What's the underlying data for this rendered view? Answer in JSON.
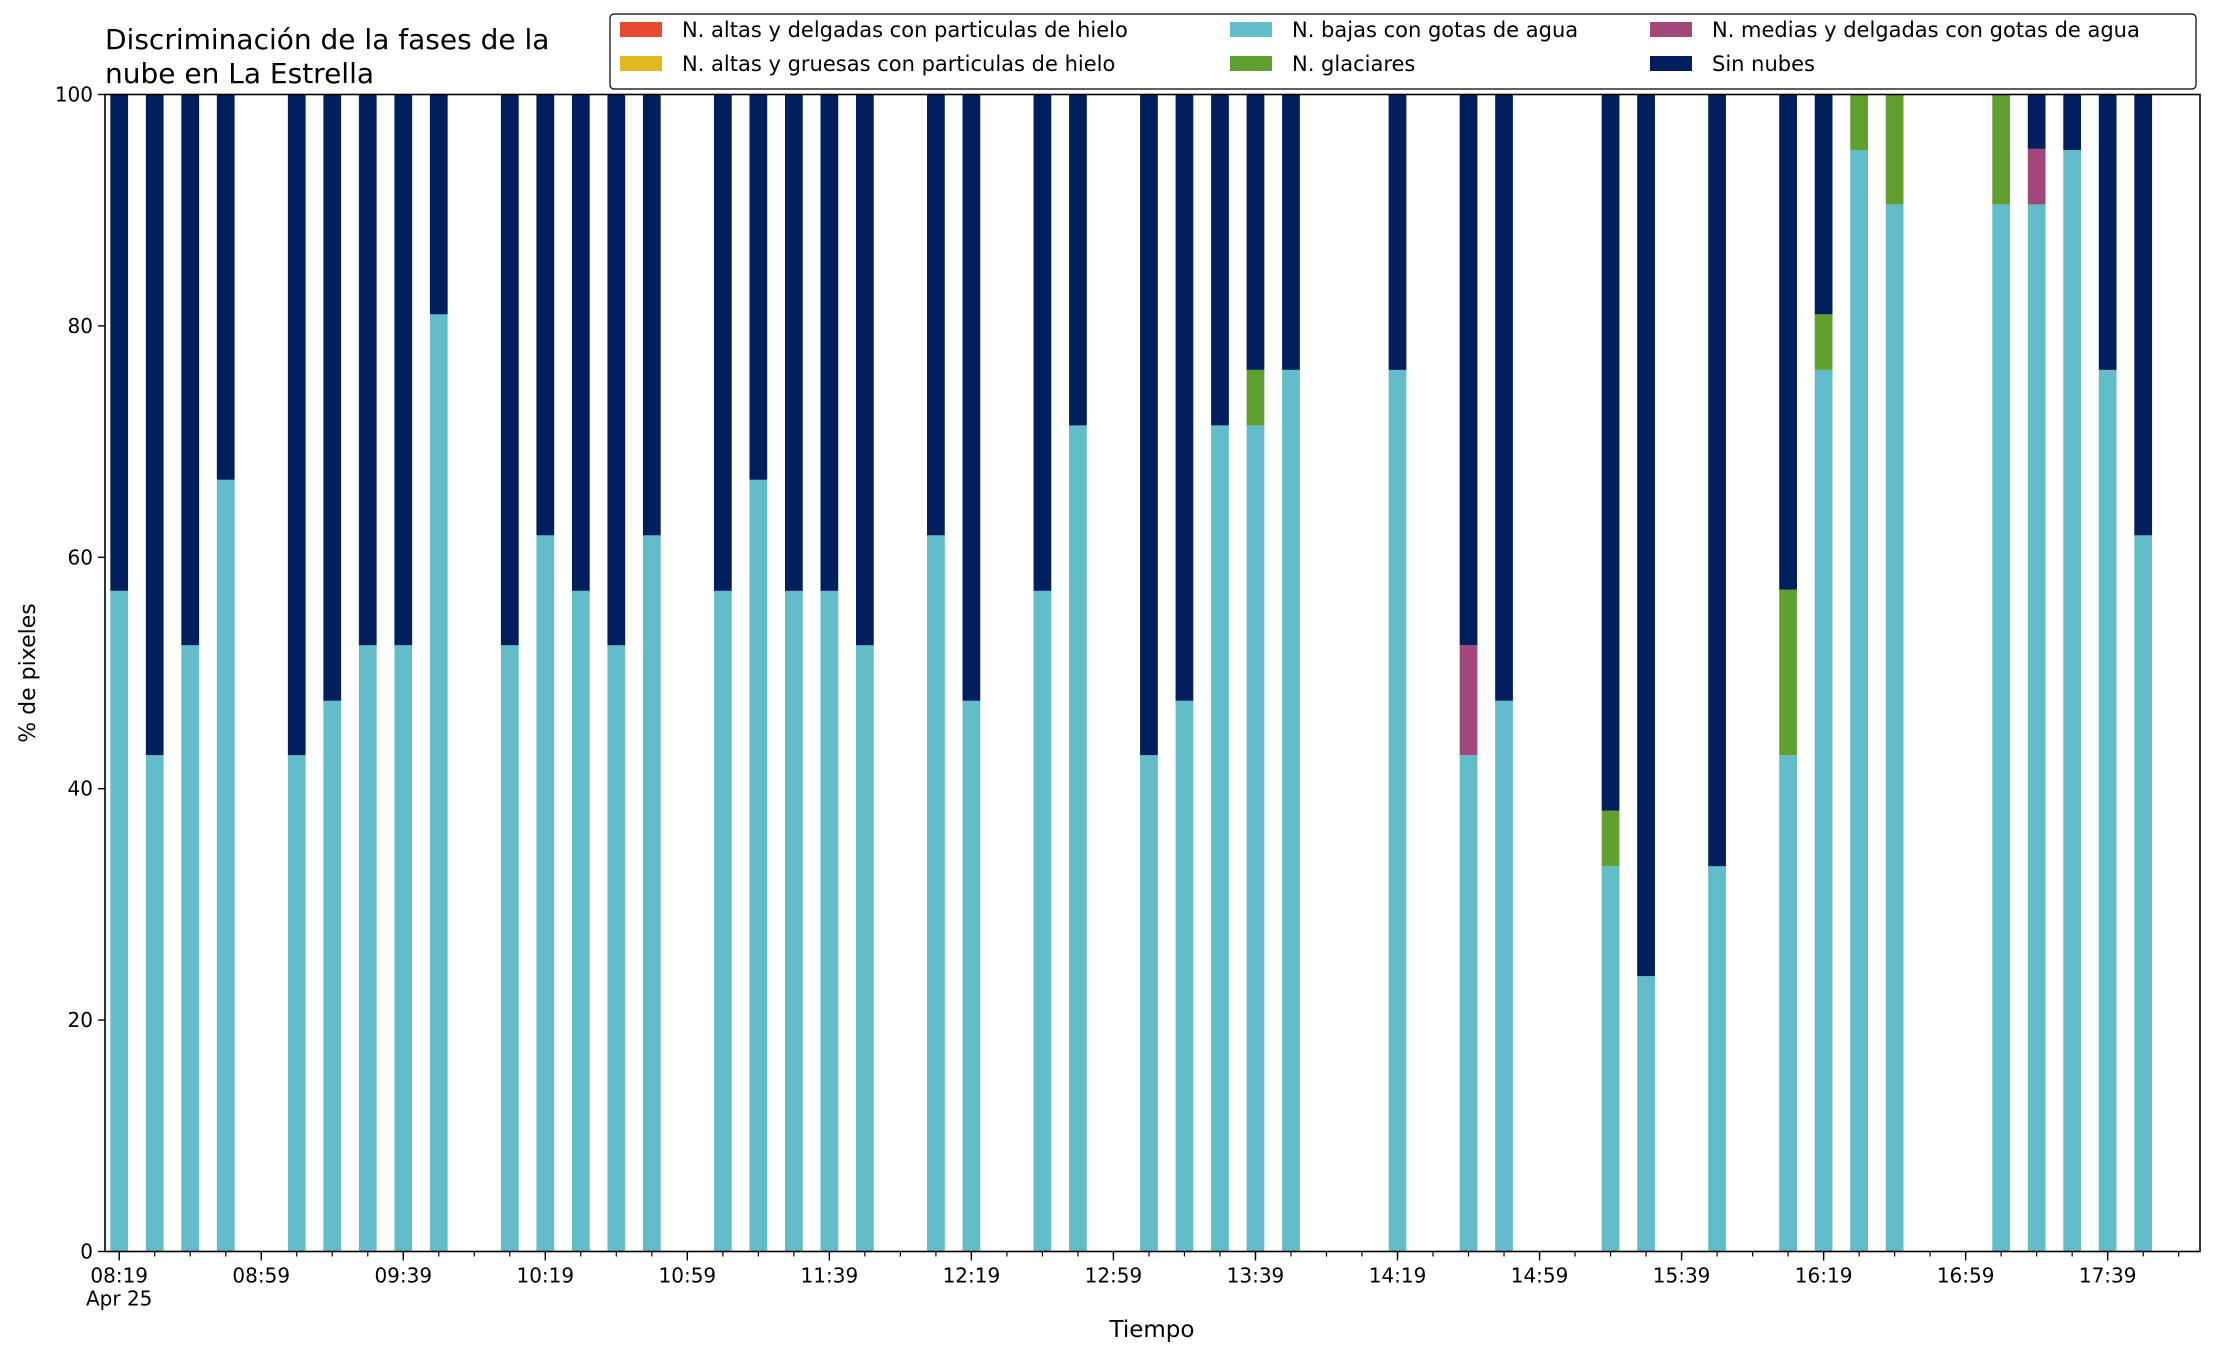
{
  "chart_data": {
    "type": "bar",
    "stacked": true,
    "title_lines": [
      "Discriminación de la fases de la",
      "nube en La Estrella"
    ],
    "xlabel": "Tiempo",
    "ylabel": "% de pixeles",
    "ylim": [
      0,
      100
    ],
    "yticks": [
      "0",
      "20",
      "40",
      "60",
      "80",
      "100"
    ],
    "xlim": [
      "08:15",
      "18:05"
    ],
    "first_tick_date": "Apr 25",
    "xticks": [
      "08:19",
      "08:59",
      "09:39",
      "10:19",
      "10:59",
      "11:39",
      "12:19",
      "12:59",
      "13:39",
      "14:19",
      "14:59",
      "15:39",
      "16:19",
      "16:59",
      "17:39"
    ],
    "bar_width_minutes": 5,
    "grid": false,
    "legend_position": "top-right",
    "legend_columns": 3,
    "series": [
      {
        "name": "N. altas y delgadas con particulas de hielo",
        "color": "#e84a2f"
      },
      {
        "name": "N. altas y gruesas con particulas de hielo",
        "color": "#e3b81e"
      },
      {
        "name": "N. bajas con gotas de agua",
        "color": "#63bcc9"
      },
      {
        "name": "N. glaciares",
        "color": "#5fa02e"
      },
      {
        "name": "N. medias y delgadas con gotas de agua",
        "color": "#a3467a"
      },
      {
        "name": "Sin nubes",
        "color": "#001f5c"
      }
    ],
    "bars": [
      {
        "t": "08:19",
        "values": [
          0,
          0,
          57.1,
          0,
          0,
          42.9
        ]
      },
      {
        "t": "08:29",
        "values": [
          0,
          0,
          42.9,
          0,
          0,
          57.1
        ]
      },
      {
        "t": "08:39",
        "values": [
          0,
          0,
          52.4,
          0,
          0,
          47.6
        ]
      },
      {
        "t": "08:49",
        "values": [
          0,
          0,
          66.7,
          0,
          0,
          33.3
        ]
      },
      {
        "t": "09:09",
        "values": [
          0,
          0,
          42.9,
          0,
          0,
          57.1
        ]
      },
      {
        "t": "09:19",
        "values": [
          0,
          0,
          47.6,
          0,
          0,
          52.4
        ]
      },
      {
        "t": "09:29",
        "values": [
          0,
          0,
          52.4,
          0,
          0,
          47.6
        ]
      },
      {
        "t": "09:39",
        "values": [
          0,
          0,
          52.4,
          0,
          0,
          47.6
        ]
      },
      {
        "t": "09:49",
        "values": [
          0,
          0,
          81.0,
          0,
          0,
          19.0
        ]
      },
      {
        "t": "10:09",
        "values": [
          0,
          0,
          52.4,
          0,
          0,
          47.6
        ]
      },
      {
        "t": "10:19",
        "values": [
          0,
          0,
          61.9,
          0,
          0,
          38.1
        ]
      },
      {
        "t": "10:29",
        "values": [
          0,
          0,
          57.1,
          0,
          0,
          42.9
        ]
      },
      {
        "t": "10:39",
        "values": [
          0,
          0,
          52.4,
          0,
          0,
          47.6
        ]
      },
      {
        "t": "10:49",
        "values": [
          0,
          0,
          61.9,
          0,
          0,
          38.1
        ]
      },
      {
        "t": "11:09",
        "values": [
          0,
          0,
          57.1,
          0,
          0,
          42.9
        ]
      },
      {
        "t": "11:19",
        "values": [
          0,
          0,
          66.7,
          0,
          0,
          33.3
        ]
      },
      {
        "t": "11:29",
        "values": [
          0,
          0,
          57.1,
          0,
          0,
          42.9
        ]
      },
      {
        "t": "11:39",
        "values": [
          0,
          0,
          57.1,
          0,
          0,
          42.9
        ]
      },
      {
        "t": "11:49",
        "values": [
          0,
          0,
          52.4,
          0,
          0,
          47.6
        ]
      },
      {
        "t": "12:09",
        "values": [
          0,
          0,
          61.9,
          0,
          0,
          38.1
        ]
      },
      {
        "t": "12:19",
        "values": [
          0,
          0,
          47.6,
          0,
          0,
          52.4
        ]
      },
      {
        "t": "12:39",
        "values": [
          0,
          0,
          57.1,
          0,
          0,
          42.9
        ]
      },
      {
        "t": "12:49",
        "values": [
          0,
          0,
          71.4,
          0,
          0,
          28.6
        ]
      },
      {
        "t": "13:09",
        "values": [
          0,
          0,
          42.9,
          0,
          0,
          57.1
        ]
      },
      {
        "t": "13:19",
        "values": [
          0,
          0,
          47.6,
          0,
          0,
          52.4
        ]
      },
      {
        "t": "13:29",
        "values": [
          0,
          0,
          71.4,
          0,
          0,
          28.6
        ]
      },
      {
        "t": "13:39",
        "values": [
          0,
          0,
          71.4,
          4.8,
          0,
          23.8
        ]
      },
      {
        "t": "13:49",
        "values": [
          0,
          0,
          76.2,
          0,
          0,
          23.8
        ]
      },
      {
        "t": "14:19",
        "values": [
          0,
          0,
          76.2,
          0,
          0,
          23.8
        ]
      },
      {
        "t": "14:39",
        "values": [
          0,
          0,
          42.9,
          0,
          9.5,
          47.6
        ]
      },
      {
        "t": "14:49",
        "values": [
          0,
          0,
          47.6,
          0,
          0,
          52.4
        ]
      },
      {
        "t": "15:19",
        "values": [
          0,
          0,
          33.3,
          4.8,
          0,
          61.9
        ]
      },
      {
        "t": "15:29",
        "values": [
          0,
          0,
          23.8,
          0,
          0,
          76.2
        ]
      },
      {
        "t": "15:49",
        "values": [
          0,
          0,
          33.3,
          0,
          0,
          66.7
        ]
      },
      {
        "t": "16:09",
        "values": [
          0,
          0,
          42.9,
          14.3,
          0,
          42.8
        ]
      },
      {
        "t": "16:19",
        "values": [
          0,
          0,
          76.2,
          4.8,
          0,
          19.0
        ]
      },
      {
        "t": "16:29",
        "values": [
          0,
          0,
          95.2,
          4.8,
          0,
          0
        ]
      },
      {
        "t": "16:39",
        "values": [
          0,
          0,
          90.5,
          9.5,
          0,
          0
        ]
      },
      {
        "t": "17:09",
        "values": [
          0,
          0,
          90.5,
          9.5,
          0,
          0
        ]
      },
      {
        "t": "17:19",
        "values": [
          0,
          0,
          90.5,
          0,
          4.8,
          4.7
        ]
      },
      {
        "t": "17:29",
        "values": [
          0,
          0,
          95.2,
          0,
          0,
          4.8
        ]
      },
      {
        "t": "17:39",
        "values": [
          0,
          0,
          76.2,
          0,
          0,
          23.8
        ]
      },
      {
        "t": "17:49",
        "values": [
          0,
          0,
          61.9,
          0,
          0,
          38.1
        ]
      }
    ]
  }
}
